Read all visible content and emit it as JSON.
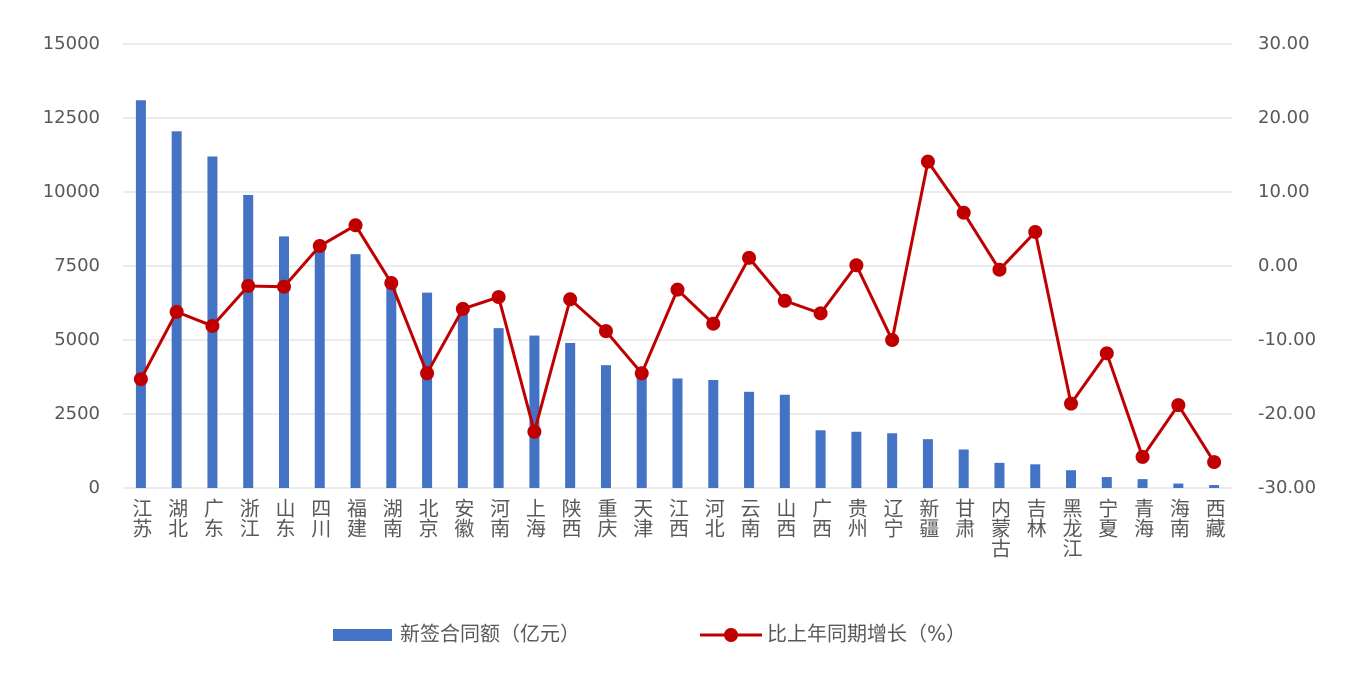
{
  "chart_data": {
    "type": "bar-line",
    "categories": [
      "江苏",
      "湖北",
      "广东",
      "浙江",
      "山东",
      "四川",
      "福建",
      "湖南",
      "北京",
      "安徽",
      "河南",
      "上海",
      "陕西",
      "重庆",
      "天津",
      "江西",
      "河北",
      "云南",
      "山西",
      "广西",
      "贵州",
      "辽宁",
      "新疆",
      "甘肃",
      "内蒙古",
      "吉林",
      "黑龙江",
      "宁夏",
      "青海",
      "海南",
      "西藏"
    ],
    "series": [
      {
        "name": "新签合同额（亿元）",
        "type": "bar",
        "color": "#4472c4",
        "values": [
          13100,
          12050,
          11200,
          9900,
          8500,
          8150,
          7900,
          6900,
          6600,
          6000,
          5400,
          5150,
          4900,
          4150,
          3800,
          3700,
          3650,
          3250,
          3150,
          1950,
          1900,
          1850,
          1650,
          1300,
          850,
          800,
          600,
          370,
          300,
          150,
          100
        ]
      },
      {
        "name": "比上年同期增长（%）",
        "type": "line",
        "axis": "y2",
        "color": "#c00000",
        "values": [
          -15.3,
          -6.2,
          -8.1,
          -2.7,
          -2.8,
          2.7,
          5.5,
          -2.3,
          -14.5,
          -5.8,
          -4.2,
          -22.4,
          -4.5,
          -8.8,
          -14.5,
          -3.2,
          -7.8,
          1.1,
          -4.7,
          -6.4,
          0.1,
          -10.0,
          14.1,
          7.2,
          -0.5,
          4.6,
          -18.6,
          -11.8,
          -25.8,
          -18.8,
          -26.5
        ]
      }
    ],
    "ylim": [
      0,
      15000
    ],
    "yticks": [
      0,
      2500,
      5000,
      7500,
      10000,
      12500,
      15000
    ],
    "y2lim": [
      -30,
      30
    ],
    "y2ticks": [
      {
        "value": -30,
        "label": "-30.00"
      },
      {
        "value": -20,
        "label": "-20.00"
      },
      {
        "value": -10,
        "label": "-10.00"
      },
      {
        "value": 0,
        "label": "0.00"
      },
      {
        "value": 10,
        "label": "10.00"
      },
      {
        "value": 20,
        "label": "20.00"
      },
      {
        "value": 30,
        "label": "30.00"
      }
    ],
    "grid": true,
    "legend": "bottom"
  }
}
